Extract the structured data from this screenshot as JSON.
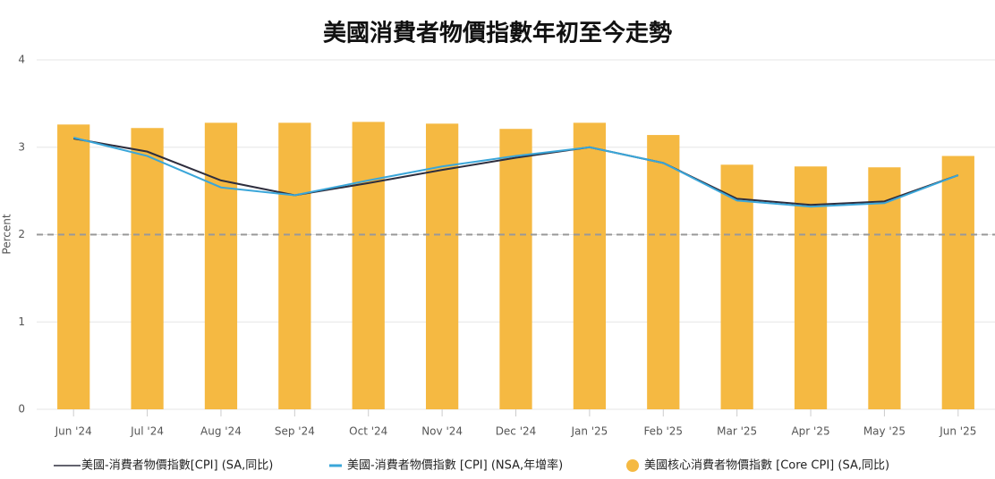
{
  "chart_data": {
    "type": "bar_line",
    "title": "美國消費者物價指數年初至今走勢",
    "y_label": "Percent",
    "categories": [
      "Jun '24",
      "Jul '24",
      "Aug '24",
      "Sep '24",
      "Oct '24",
      "Nov '24",
      "Dec '24",
      "Jan '25",
      "Feb '25",
      "Mar '25",
      "Apr '25",
      "May '25",
      "Jun '25"
    ],
    "series": [
      {
        "name": "美國-消費者物價指數[CPI] (SA,同比)",
        "kind": "line",
        "color": "#2e2e3e",
        "values": [
          3.1,
          2.95,
          2.62,
          2.45,
          2.59,
          2.74,
          2.88,
          3.0,
          2.82,
          2.41,
          2.34,
          2.38,
          2.68
        ]
      },
      {
        "name": "美國-消費者物價指數 [CPI] (NSA,年增率)",
        "kind": "line",
        "color": "#3aa6d9",
        "values": [
          3.11,
          2.9,
          2.54,
          2.45,
          2.62,
          2.78,
          2.9,
          3.0,
          2.82,
          2.39,
          2.32,
          2.36,
          2.68
        ]
      },
      {
        "name": "美國核心消費者物價指數 [Core CPI] (SA,同比)",
        "kind": "bar",
        "color": "#f5b942",
        "values": [
          3.26,
          3.22,
          3.28,
          3.28,
          3.29,
          3.27,
          3.21,
          3.28,
          3.14,
          2.8,
          2.78,
          2.77,
          2.9
        ]
      }
    ],
    "reference_line": 2,
    "ylim": [
      0,
      4
    ],
    "yticks": [
      0,
      1,
      2,
      3,
      4
    ],
    "grid": true
  }
}
